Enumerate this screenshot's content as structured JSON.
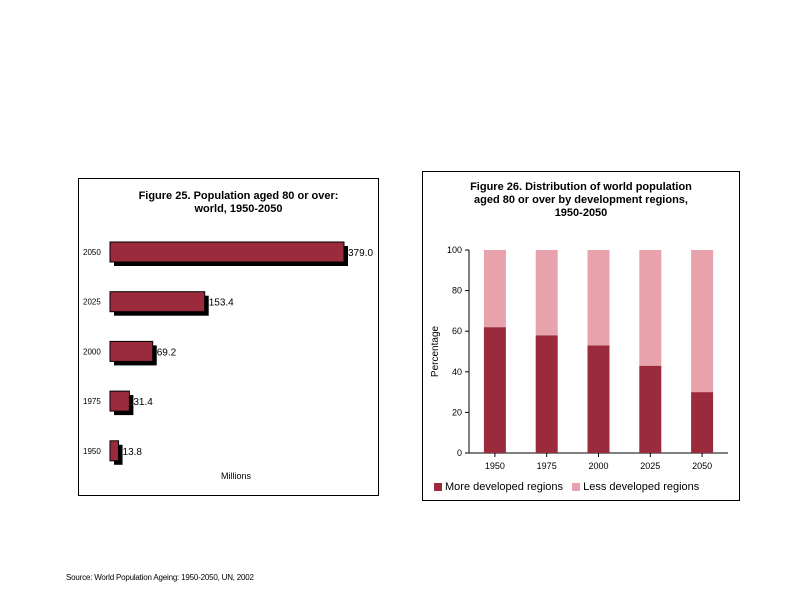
{
  "colors": {
    "more": "#9b2b3c",
    "less": "#e7a2ab",
    "shadow": "#000000",
    "bar_left": "#9b2b3c"
  },
  "chart_data": [
    {
      "type": "bar",
      "orientation": "horizontal",
      "title": "Figure 25.  Population aged 80 or over: world, 1950-2050",
      "title_lines": [
        "Figure 25.  Population aged 80 or over:",
        "world, 1950-2050"
      ],
      "xlabel": "Millions",
      "categories": [
        "2050",
        "2025",
        "2000",
        "1975",
        "1950"
      ],
      "values": [
        379.0,
        153.4,
        69.2,
        31.4,
        13.8
      ],
      "value_labels": [
        "379.0",
        "153.4",
        "69.2",
        "31.4",
        "13.8"
      ],
      "xlim": [
        0,
        379.0
      ]
    },
    {
      "type": "bar",
      "stacked": true,
      "title": "Figure 26.  Distribution of world population aged 80 or over by development regions, 1950-2050",
      "title_lines": [
        "Figure 26.  Distribution of world population",
        "aged 80 or over by development regions,",
        "1950-2050"
      ],
      "ylabel": "Percentage",
      "ylim": [
        0,
        100
      ],
      "yticks": [
        0,
        20,
        40,
        60,
        80,
        100
      ],
      "categories": [
        "1950",
        "1975",
        "2000",
        "2025",
        "2050"
      ],
      "series": [
        {
          "name": "More developed regions",
          "values": [
            62,
            58,
            53,
            43,
            30
          ]
        },
        {
          "name": "Less developed regions",
          "values": [
            38,
            42,
            47,
            57,
            70
          ]
        }
      ]
    }
  ],
  "source": "Source: World Population Ageing: 1950-2050, UN, 2002"
}
